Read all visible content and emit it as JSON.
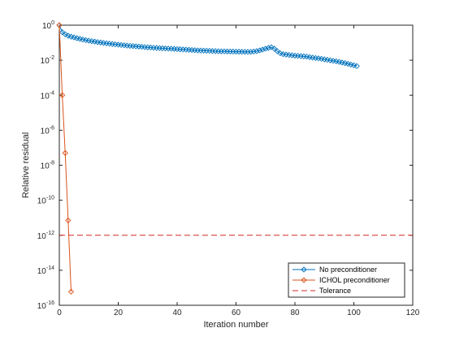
{
  "chart_data": {
    "type": "line",
    "title": "",
    "xlabel": "Iteration number",
    "ylabel": "Relative residual",
    "xlim": [
      0,
      120
    ],
    "ylim": [
      1e-16,
      1
    ],
    "y_scale": "log",
    "x_ticks": [
      0,
      20,
      40,
      60,
      80,
      100,
      120
    ],
    "x_tick_labels": [
      "0",
      "20",
      "40",
      "60",
      "80",
      "100",
      "120"
    ],
    "y_ticks": [
      {
        "value": 1e-16,
        "base": "10",
        "exp": "-16"
      },
      {
        "value": 1e-14,
        "base": "10",
        "exp": "-14"
      },
      {
        "value": 1e-12,
        "base": "10",
        "exp": "-12"
      },
      {
        "value": 1e-10,
        "base": "10",
        "exp": "-10"
      },
      {
        "value": 1e-08,
        "base": "10",
        "exp": "-8"
      },
      {
        "value": 1e-06,
        "base": "10",
        "exp": "-6"
      },
      {
        "value": 0.0001,
        "base": "10",
        "exp": "-4"
      },
      {
        "value": 0.01,
        "base": "10",
        "exp": "-2"
      },
      {
        "value": 1,
        "base": "10",
        "exp": "0"
      }
    ],
    "grid": false,
    "box": true,
    "legend_position": "bottom-right",
    "series": [
      {
        "name": "No preconditioner",
        "color": "#0072BD",
        "marker": "diamond",
        "line_style": "solid",
        "x": [
          0,
          1,
          2,
          3,
          4,
          5,
          6,
          7,
          8,
          9,
          10,
          11,
          12,
          13,
          14,
          15,
          16,
          17,
          18,
          19,
          20,
          21,
          22,
          23,
          24,
          25,
          26,
          27,
          28,
          29,
          30,
          31,
          32,
          33,
          34,
          35,
          36,
          37,
          38,
          39,
          40,
          41,
          42,
          43,
          44,
          45,
          46,
          47,
          48,
          49,
          50,
          51,
          52,
          53,
          54,
          55,
          56,
          57,
          58,
          59,
          60,
          61,
          62,
          63,
          64,
          65,
          66,
          67,
          68,
          69,
          70,
          71,
          72,
          73,
          74,
          75,
          76,
          77,
          78,
          79,
          80,
          81,
          82,
          83,
          84,
          85,
          86,
          87,
          88,
          89,
          90,
          91,
          92,
          93,
          94,
          95,
          96,
          97,
          98,
          99,
          100,
          101
        ],
        "y": [
          1.0,
          0.4,
          0.3,
          0.25,
          0.22,
          0.2,
          0.18,
          0.165,
          0.15,
          0.14,
          0.13,
          0.122,
          0.115,
          0.108,
          0.102,
          0.097,
          0.092,
          0.088,
          0.084,
          0.08,
          0.077,
          0.074,
          0.071,
          0.068,
          0.066,
          0.064,
          0.062,
          0.06,
          0.058,
          0.056,
          0.054,
          0.053,
          0.051,
          0.05,
          0.049,
          0.048,
          0.047,
          0.046,
          0.045,
          0.044,
          0.043,
          0.042,
          0.041,
          0.04,
          0.039,
          0.038,
          0.037,
          0.036,
          0.0355,
          0.035,
          0.0345,
          0.034,
          0.0335,
          0.033,
          0.0325,
          0.032,
          0.0318,
          0.0315,
          0.0312,
          0.031,
          0.0308,
          0.0305,
          0.0302,
          0.03,
          0.0298,
          0.03,
          0.031,
          0.033,
          0.036,
          0.04,
          0.045,
          0.05,
          0.055,
          0.045,
          0.033,
          0.025,
          0.022,
          0.021,
          0.02,
          0.019,
          0.018,
          0.0175,
          0.017,
          0.0165,
          0.016,
          0.015,
          0.014,
          0.0133,
          0.0127,
          0.012,
          0.0112,
          0.0105,
          0.0098,
          0.0092,
          0.0086,
          0.008,
          0.0074,
          0.0068,
          0.0062,
          0.0056,
          0.0051,
          0.0046
        ]
      },
      {
        "name": "ICHOL preconditioner",
        "color": "#D95319",
        "marker": "diamond",
        "line_style": "solid",
        "x": [
          0,
          1,
          2,
          3,
          4
        ],
        "y": [
          1.0,
          0.0001,
          5e-08,
          7e-12,
          6e-16
        ]
      },
      {
        "name": "Tolerance",
        "color": "#D62728",
        "marker": "none",
        "line_style": "dashed",
        "x": [
          0,
          120
        ],
        "y": [
          1e-12,
          1e-12
        ]
      }
    ]
  }
}
